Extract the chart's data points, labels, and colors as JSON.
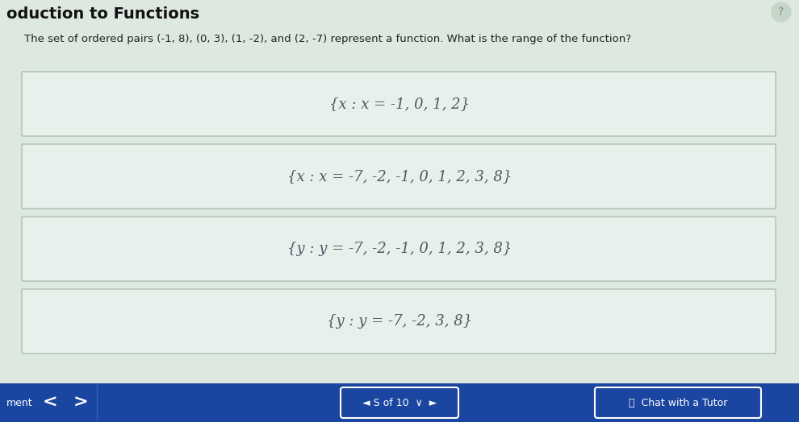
{
  "title": "oduction to Functions",
  "question": "The set of ordered pairs (-1, 8), (0, 3), (1, -2), and (2, -7) represent a function. What is the range of the function?",
  "options": [
    "{x : x = -1, 0, 1, 2}",
    "{x : x = -7, -2, -1, 0, 1, 2, 3, 8}",
    "{y : y = -7, -2, -1, 0, 1, 2, 3, 8}",
    "{y : y = -7, -2, 3, 8}"
  ],
  "bg_color": "#dde8e0",
  "box_bg_color": "#e8f0eb",
  "box_border_color": "#aabfb0",
  "title_color": "#111111",
  "question_color": "#222222",
  "option_color": "#555566",
  "bottom_bar_color": "#1a45a0",
  "bottom_text_color": "#ffffff",
  "title_fontsize": 14,
  "question_fontsize": 9.5,
  "option_fontsize": 13
}
